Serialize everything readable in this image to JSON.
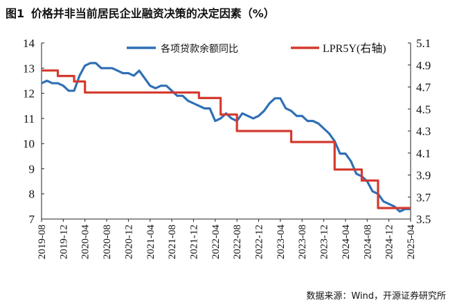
{
  "header": {
    "fig_label": "图1",
    "title": "价格并非当前居民企业融资决策的决定因素（%）"
  },
  "source": "数据来源：Wind，开源证券研究所",
  "chart_data": {
    "type": "line",
    "x": [
      "2019-08",
      "2019-09",
      "2019-10",
      "2019-11",
      "2019-12",
      "2020-01",
      "2020-02",
      "2020-03",
      "2020-04",
      "2020-05",
      "2020-06",
      "2020-07",
      "2020-08",
      "2020-09",
      "2020-10",
      "2020-11",
      "2020-12",
      "2021-01",
      "2021-02",
      "2021-03",
      "2021-04",
      "2021-05",
      "2021-06",
      "2021-07",
      "2021-08",
      "2021-09",
      "2021-10",
      "2021-11",
      "2021-12",
      "2022-01",
      "2022-02",
      "2022-03",
      "2022-04",
      "2022-05",
      "2022-06",
      "2022-07",
      "2022-08",
      "2022-09",
      "2022-10",
      "2022-11",
      "2022-12",
      "2023-01",
      "2023-02",
      "2023-03",
      "2023-04",
      "2023-05",
      "2023-06",
      "2023-07",
      "2023-08",
      "2023-09",
      "2023-10",
      "2023-11",
      "2023-12",
      "2024-01",
      "2024-02",
      "2024-03",
      "2024-04",
      "2024-05",
      "2024-06",
      "2024-07",
      "2024-08",
      "2024-09",
      "2024-10",
      "2024-11",
      "2024-12",
      "2025-01",
      "2025-02",
      "2025-03",
      "2025-04"
    ],
    "x_tick_labels": [
      "2019-08",
      "2019-12",
      "2020-04",
      "2020-08",
      "2020-12",
      "2021-04",
      "2021-08",
      "2021-12",
      "2022-04",
      "2022-08",
      "2022-12",
      "2023-04",
      "2023-08",
      "2023-12",
      "2024-04",
      "2024-08",
      "2024-12",
      "2025-04"
    ],
    "series": [
      {
        "name": "各项贷款余额同比",
        "axis": "left",
        "color": "#2f6fb5",
        "values": [
          12.4,
          12.5,
          12.4,
          12.4,
          12.3,
          12.1,
          12.1,
          12.7,
          13.1,
          13.2,
          13.2,
          13.0,
          13.0,
          13.0,
          12.9,
          12.8,
          12.8,
          12.7,
          12.9,
          12.6,
          12.3,
          12.2,
          12.3,
          12.3,
          12.1,
          11.9,
          11.9,
          11.7,
          11.6,
          11.5,
          11.4,
          11.4,
          10.9,
          11.0,
          11.2,
          11.0,
          10.9,
          11.2,
          11.1,
          11.0,
          11.1,
          11.3,
          11.6,
          11.8,
          11.8,
          11.4,
          11.3,
          11.1,
          11.1,
          10.9,
          10.9,
          10.8,
          10.6,
          10.4,
          10.1,
          9.6,
          9.6,
          9.3,
          8.8,
          8.7,
          8.5,
          8.1,
          8.0,
          7.7,
          7.6,
          7.5,
          7.3,
          7.4,
          7.4
        ]
      },
      {
        "name": "LPR5Y(右轴)",
        "axis": "right",
        "color": "#d43a2f",
        "values": [
          4.85,
          4.85,
          4.85,
          4.8,
          4.8,
          4.8,
          4.75,
          4.75,
          4.65,
          4.65,
          4.65,
          4.65,
          4.65,
          4.65,
          4.65,
          4.65,
          4.65,
          4.65,
          4.65,
          4.65,
          4.65,
          4.65,
          4.65,
          4.65,
          4.65,
          4.65,
          4.65,
          4.65,
          4.65,
          4.6,
          4.6,
          4.6,
          4.6,
          4.45,
          4.45,
          4.45,
          4.3,
          4.3,
          4.3,
          4.3,
          4.3,
          4.3,
          4.3,
          4.3,
          4.3,
          4.3,
          4.2,
          4.2,
          4.2,
          4.2,
          4.2,
          4.2,
          4.2,
          4.2,
          3.95,
          3.95,
          3.95,
          3.95,
          3.95,
          3.85,
          3.85,
          3.85,
          3.6,
          3.6,
          3.6,
          3.6,
          3.6,
          3.6,
          3.6
        ]
      }
    ],
    "left_axis": {
      "min": 7,
      "max": 14,
      "ticks": [
        7,
        8,
        9,
        10,
        11,
        12,
        13,
        14
      ]
    },
    "right_axis": {
      "min": 3.5,
      "max": 5.1,
      "ticks": [
        "3.5",
        "3.7",
        "3.9",
        "4.1",
        "4.3",
        "4.5",
        "4.7",
        "4.9",
        "5.1"
      ]
    },
    "legend_position": "top-right",
    "grid": false
  }
}
